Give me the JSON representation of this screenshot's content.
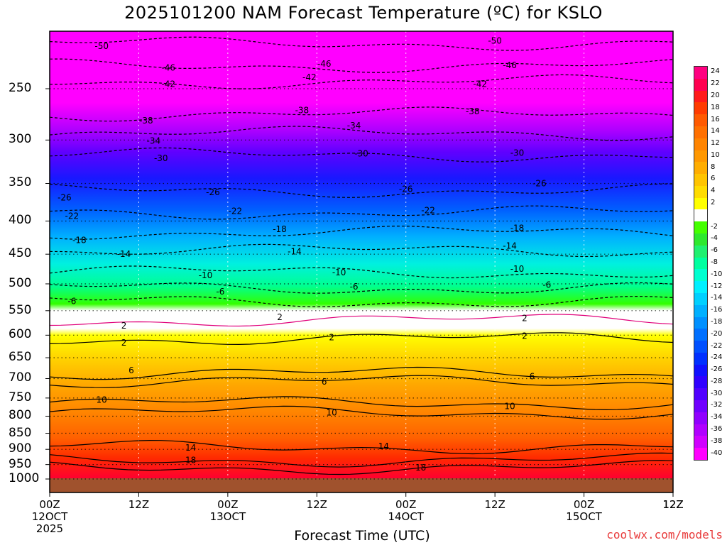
{
  "title": "2025101200 NAM Forecast Temperature (ºC) for KSLO",
  "credit": "coolwx.com/models",
  "chart_data": {
    "type": "contour",
    "xlabel": "Forecast Time (UTC)",
    "ylabel": "",
    "y_ticks": [
      "250",
      "300",
      "350",
      "400",
      "450",
      "500",
      "550",
      "600",
      "650",
      "700",
      "750",
      "800",
      "850",
      "900",
      "950",
      "1000"
    ],
    "x_ticks": [
      {
        "hour": 0,
        "lines": [
          "00Z",
          "12OCT",
          "2025"
        ]
      },
      {
        "hour": 12,
        "lines": [
          "12Z"
        ]
      },
      {
        "hour": 24,
        "lines": [
          "00Z",
          "13OCT"
        ]
      },
      {
        "hour": 36,
        "lines": [
          "12Z"
        ]
      },
      {
        "hour": 48,
        "lines": [
          "00Z",
          "14OCT"
        ]
      },
      {
        "hour": 60,
        "lines": [
          "12Z"
        ]
      },
      {
        "hour": 72,
        "lines": [
          "00Z",
          "15OCT"
        ]
      },
      {
        "hour": 84,
        "lines": [
          "12Z"
        ]
      }
    ],
    "colorbar_levels": [
      "24",
      "22",
      "20",
      "18",
      "16",
      "14",
      "12",
      "10",
      "8",
      "6",
      "4",
      "2",
      "",
      "-2",
      "-4",
      "-6",
      "-8",
      "-10",
      "-12",
      "-14",
      "-16",
      "-18",
      "-20",
      "-22",
      "-24",
      "-26",
      "-28",
      "-30",
      "-32",
      "-34",
      "-36",
      "-38",
      "-40"
    ],
    "colorbar_colors": [
      "#ff0080",
      "#ff0050",
      "#ff1a1a",
      "#ff3b00",
      "#ff5a00",
      "#ff7000",
      "#ff8400",
      "#ff9800",
      "#ffad00",
      "#ffc400",
      "#ffdc00",
      "#ffff00",
      "#ffffff",
      "#44ff00",
      "#2ee82e",
      "#20f070",
      "#00ffa0",
      "#00ffd0",
      "#00f0ff",
      "#00d0ff",
      "#00b0ff",
      "#0090ff",
      "#0070ff",
      "#0050ff",
      "#0030ff",
      "#1010ff",
      "#3000ff",
      "#5000ff",
      "#7000ff",
      "#9000ff",
      "#b000ff",
      "#d000ff",
      "#ff00ff"
    ],
    "contour_labels": [
      {
        "value": "-50",
        "hour": 7,
        "p": 215
      },
      {
        "value": "-46",
        "hour": 16,
        "p": 232
      },
      {
        "value": "-42",
        "hour": 16,
        "p": 246
      },
      {
        "value": "-38",
        "hour": 13,
        "p": 280
      },
      {
        "value": "-34",
        "hour": 14,
        "p": 301
      },
      {
        "value": "-30",
        "hour": 15,
        "p": 320
      },
      {
        "value": "-26",
        "hour": 2,
        "p": 368
      },
      {
        "value": "-22",
        "hour": 3,
        "p": 393
      },
      {
        "value": "-18",
        "hour": 4,
        "p": 428
      },
      {
        "value": "-14",
        "hour": 10,
        "p": 450
      },
      {
        "value": "-10",
        "hour": 21,
        "p": 485
      },
      {
        "value": "-6",
        "hour": 3,
        "p": 532
      },
      {
        "value": "2",
        "hour": 10,
        "p": 580
      },
      {
        "value": "2",
        "hour": 10,
        "p": 616
      },
      {
        "value": "6",
        "hour": 11,
        "p": 680
      },
      {
        "value": "10",
        "hour": 7,
        "p": 755
      },
      {
        "value": "14",
        "hour": 19,
        "p": 895
      },
      {
        "value": "18",
        "hour": 19,
        "p": 935
      },
      {
        "value": "-46",
        "hour": 37,
        "p": 229
      },
      {
        "value": "-42",
        "hour": 35,
        "p": 240
      },
      {
        "value": "-38",
        "hour": 34,
        "p": 270
      },
      {
        "value": "-34",
        "hour": 41,
        "p": 285
      },
      {
        "value": "-30",
        "hour": 42,
        "p": 315
      },
      {
        "value": "-26",
        "hour": 22,
        "p": 361
      },
      {
        "value": "-22",
        "hour": 25,
        "p": 386
      },
      {
        "value": "-18",
        "hour": 31,
        "p": 412
      },
      {
        "value": "-14",
        "hour": 33,
        "p": 446
      },
      {
        "value": "-10",
        "hour": 39,
        "p": 480
      },
      {
        "value": "-6",
        "hour": 23,
        "p": 514
      },
      {
        "value": "2",
        "hour": 31,
        "p": 563
      },
      {
        "value": "-26",
        "hour": 48,
        "p": 357
      },
      {
        "value": "-22",
        "hour": 51,
        "p": 385
      },
      {
        "value": "-6",
        "hour": 41,
        "p": 505
      },
      {
        "value": "2",
        "hour": 38,
        "p": 605
      },
      {
        "value": "6",
        "hour": 37,
        "p": 708
      },
      {
        "value": "10",
        "hour": 38,
        "p": 790
      },
      {
        "value": "14",
        "hour": 45,
        "p": 890
      },
      {
        "value": "18",
        "hour": 50,
        "p": 960
      },
      {
        "value": "-50",
        "hour": 60,
        "p": 211
      },
      {
        "value": "-46",
        "hour": 62,
        "p": 230
      },
      {
        "value": "-42",
        "hour": 58,
        "p": 246
      },
      {
        "value": "-38",
        "hour": 57,
        "p": 271
      },
      {
        "value": "-30",
        "hour": 63,
        "p": 314
      },
      {
        "value": "-26",
        "hour": 66,
        "p": 350
      },
      {
        "value": "-18",
        "hour": 63,
        "p": 410
      },
      {
        "value": "-14",
        "hour": 62,
        "p": 437
      },
      {
        "value": "-10",
        "hour": 63,
        "p": 474
      },
      {
        "value": "-6",
        "hour": 67,
        "p": 502
      },
      {
        "value": "2",
        "hour": 64,
        "p": 565
      },
      {
        "value": "2",
        "hour": 64,
        "p": 602
      },
      {
        "value": "6",
        "hour": 65,
        "p": 695
      },
      {
        "value": "10",
        "hour": 62,
        "p": 772
      }
    ]
  }
}
